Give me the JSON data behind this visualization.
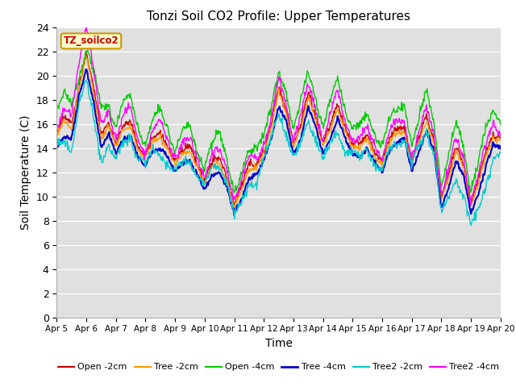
{
  "title": "Tonzi Soil CO2 Profile: Upper Temperatures",
  "xlabel": "Time",
  "ylabel": "Soil Temperature (C)",
  "annotation": "TZ_soilco2",
  "ylim": [
    0,
    24
  ],
  "yticks": [
    0,
    2,
    4,
    6,
    8,
    10,
    12,
    14,
    16,
    18,
    20,
    22,
    24
  ],
  "xtick_labels": [
    "Apr 5",
    "Apr 6",
    "Apr 7",
    "Apr 8",
    "Apr 9",
    "Apr 10",
    "Apr 11",
    "Apr 12",
    "Apr 13",
    "Apr 14",
    "Apr 15",
    "Apr 16",
    "Apr 17",
    "Apr 18",
    "Apr 19",
    "Apr 20"
  ],
  "bg_color": "#e0e0e0",
  "fig_bg": "#ffffff",
  "series": {
    "Open -2cm": {
      "color": "#cc0000",
      "lw": 1.0
    },
    "Tree -2cm": {
      "color": "#ff9900",
      "lw": 1.0
    },
    "Open -4cm": {
      "color": "#00cc00",
      "lw": 1.0
    },
    "Tree -4cm": {
      "color": "#0000cc",
      "lw": 1.5
    },
    "Tree2 -2cm": {
      "color": "#00cccc",
      "lw": 1.0
    },
    "Tree2 -4cm": {
      "color": "#ff00ff",
      "lw": 1.0
    }
  },
  "knots_t": [
    0,
    0.25,
    0.5,
    0.75,
    1.0,
    1.25,
    1.5,
    1.75,
    2.0,
    2.25,
    2.5,
    2.75,
    3.0,
    3.25,
    3.5,
    3.75,
    4.0,
    4.25,
    4.5,
    4.75,
    5.0,
    5.25,
    5.5,
    5.75,
    6.0,
    6.25,
    6.5,
    6.75,
    7.0,
    7.25,
    7.5,
    7.75,
    8.0,
    8.25,
    8.5,
    8.75,
    9.0,
    9.25,
    9.5,
    9.75,
    10.0,
    10.25,
    10.5,
    10.75,
    11.0,
    11.25,
    11.5,
    11.75,
    12.0,
    12.25,
    12.5,
    12.75,
    13.0,
    13.25,
    13.5,
    13.75,
    14.0,
    14.25,
    14.5,
    14.75,
    15.0
  ],
  "base_v": [
    15.5,
    16.2,
    15.8,
    19.5,
    22.0,
    18.5,
    15.0,
    16.5,
    14.5,
    15.5,
    16.0,
    14.5,
    13.5,
    14.5,
    15.0,
    14.5,
    13.0,
    13.5,
    14.0,
    13.0,
    11.5,
    12.5,
    13.0,
    12.0,
    9.5,
    10.5,
    12.5,
    13.0,
    14.0,
    15.5,
    19.0,
    17.5,
    14.5,
    15.5,
    18.5,
    17.0,
    14.5,
    15.5,
    17.5,
    16.0,
    14.5,
    14.0,
    15.0,
    14.0,
    13.0,
    14.5,
    15.5,
    16.0,
    13.0,
    14.5,
    16.5,
    15.0,
    10.0,
    11.5,
    14.0,
    13.0,
    9.5,
    11.0,
    13.5,
    15.5,
    15.0
  ],
  "open4_offset": [
    2.0,
    2.0,
    1.5,
    0.8,
    0.5,
    1.5,
    2.0,
    1.5,
    1.5,
    2.0,
    2.0,
    1.5,
    1.0,
    1.5,
    2.0,
    1.5,
    1.0,
    1.5,
    1.5,
    1.0,
    1.0,
    1.5,
    2.0,
    1.5,
    1.0,
    1.0,
    1.0,
    1.5,
    1.5,
    1.5,
    1.0,
    1.5,
    1.5,
    2.0,
    1.5,
    1.5,
    1.5,
    2.0,
    2.0,
    1.5,
    1.5,
    1.5,
    1.5,
    1.5,
    1.5,
    1.5,
    1.5,
    2.0,
    1.5,
    1.5,
    2.0,
    1.5,
    1.0,
    1.5,
    2.0,
    1.5,
    1.0,
    1.5,
    2.0,
    2.0,
    1.5
  ],
  "tree4_offset": [
    -1.5,
    -1.5,
    -1.0,
    -1.0,
    -1.5,
    -1.0,
    -1.0,
    -1.0,
    -1.0,
    -1.0,
    -1.0,
    -1.0,
    -1.0,
    -1.0,
    -1.0,
    -1.0,
    -1.0,
    -1.0,
    -1.0,
    -1.0,
    -1.0,
    -1.0,
    -1.0,
    -1.0,
    -1.0,
    -1.0,
    -1.0,
    -1.0,
    -1.0,
    -1.0,
    -1.5,
    -1.0,
    -1.0,
    -1.0,
    -1.0,
    -1.0,
    -1.0,
    -1.0,
    -1.0,
    -1.0,
    -1.0,
    -1.0,
    -1.0,
    -1.0,
    -1.0,
    -1.0,
    -1.0,
    -1.0,
    -1.0,
    -1.0,
    -1.0,
    -1.0,
    -1.0,
    -1.0,
    -1.0,
    -1.0,
    -1.0,
    -1.0,
    -1.0,
    -1.0,
    -1.0
  ],
  "tree22_offset": [
    -1.5,
    -2.0,
    -2.0,
    -1.5,
    -2.5,
    -2.5,
    -2.0,
    -2.0,
    -1.5,
    -1.5,
    -1.0,
    -1.0,
    -1.0,
    -1.0,
    -1.5,
    -1.5,
    -1.0,
    -1.0,
    -1.0,
    -1.0,
    -0.5,
    -0.5,
    -0.5,
    -0.5,
    -1.0,
    -1.5,
    -1.5,
    -1.5,
    -1.0,
    -1.0,
    -2.0,
    -2.0,
    -1.5,
    -1.5,
    -2.0,
    -2.0,
    -1.5,
    -1.5,
    -2.0,
    -2.0,
    -1.0,
    -1.0,
    -1.0,
    -1.0,
    -1.0,
    -1.0,
    -1.0,
    -1.0,
    -0.5,
    -0.5,
    -1.0,
    -1.0,
    -1.5,
    -2.0,
    -2.5,
    -2.5,
    -2.0,
    -2.5,
    -2.5,
    -2.0,
    -1.5
  ],
  "tree24_offset": [
    0.5,
    0.5,
    0.5,
    2.0,
    2.5,
    1.5,
    0.5,
    1.0,
    0.5,
    1.0,
    1.0,
    0.5,
    0.5,
    0.5,
    1.0,
    0.5,
    0.5,
    0.5,
    0.5,
    0.5,
    0.5,
    0.5,
    0.5,
    0.5,
    0.5,
    0.5,
    0.5,
    0.5,
    0.5,
    0.5,
    0.5,
    0.5,
    0.5,
    1.0,
    0.5,
    0.5,
    0.5,
    1.0,
    1.0,
    0.5,
    0.5,
    0.5,
    0.5,
    0.5,
    0.5,
    0.5,
    0.5,
    0.5,
    0.5,
    0.5,
    0.5,
    0.5,
    0.5,
    0.5,
    0.5,
    0.5,
    0.5,
    0.5,
    0.5,
    1.0,
    0.5
  ]
}
